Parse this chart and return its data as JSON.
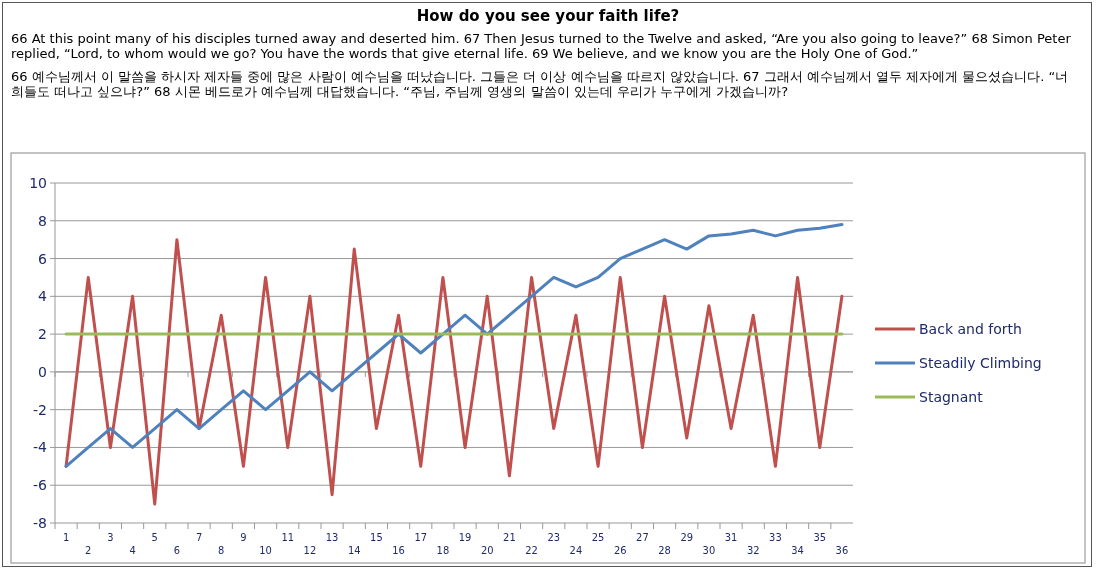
{
  "chart_data": {
    "type": "line",
    "title": "How do you see your faith life?",
    "subtitle": "66 At this point many of his disciples turned away and deserted him. 67 Then Jesus turned to the Twelve and asked, “Are you also going to leave?” 68 Simon Peter replied, “Lord, to whom would we go? You have the words that give eternal life. 69 We believe, and we know you are the Holy One of God.”",
    "annotations": [
      "66 예수님께서 이 말씀을 하시자 제자들 중에 많은 사람이 예수님을 떠났습니다. 그들은 더 이상 예수님을 따르지 않았습니다. 67 그래서 예수님께서 열두 제자에게 물으셨습니다. “너희들도 떠나고 싶으냐?” 68 시몬 베드로가 예수님께 대답했습니다. “주님, 주님께 영생의 말씀이 있는데 우리가 누구에게 가겠습니까?"
    ],
    "categories": [
      "1",
      "2",
      "3",
      "4",
      "5",
      "6",
      "7",
      "8",
      "9",
      "10",
      "11",
      "12",
      "13",
      "14",
      "15",
      "16",
      "17",
      "18",
      "19",
      "20",
      "21",
      "22",
      "23",
      "24",
      "25",
      "26",
      "27",
      "28",
      "29",
      "30",
      "31",
      "32",
      "33",
      "34",
      "35",
      "36"
    ],
    "series": [
      {
        "name": "Back and forth",
        "color": "#c0504d",
        "values": [
          -5,
          5,
          -4,
          4,
          -7,
          7,
          -3,
          3,
          -5,
          5,
          -4,
          4,
          -6.5,
          6.5,
          -3,
          3,
          -5,
          5,
          -4,
          4,
          -5.5,
          5,
          -3,
          3,
          -5,
          5,
          -4,
          4,
          -3.5,
          3.5,
          -3,
          3,
          -5,
          5,
          -4,
          4
        ]
      },
      {
        "name": "Steadily Climbing",
        "color": "#4f81bd",
        "values": [
          -5,
          -4,
          -3,
          -4,
          -3,
          -2,
          -3,
          -2,
          -1,
          -2,
          -1,
          0,
          -1,
          0,
          1,
          2,
          1,
          2,
          3,
          2,
          3,
          4,
          5,
          4.5,
          5,
          6,
          6.5,
          7,
          6.5,
          7.2,
          7.3,
          7.5,
          7.2,
          7.5,
          7.6,
          7.8
        ]
      },
      {
        "name": "Stagnant",
        "color": "#9bbb59",
        "values": [
          2,
          2,
          2,
          2,
          2,
          2,
          2,
          2,
          2,
          2,
          2,
          2,
          2,
          2,
          2,
          2,
          2,
          2,
          2,
          2,
          2,
          2,
          2,
          2,
          2,
          2,
          2,
          2,
          2,
          2,
          2,
          2,
          2,
          2,
          2,
          2
        ]
      }
    ],
    "ylim": [
      -8,
      10
    ],
    "yticks": [
      -8,
      -6,
      -4,
      -2,
      0,
      2,
      4,
      6,
      8,
      10
    ],
    "grid": "y",
    "legend": "right",
    "marker": "none",
    "line_style": "solid"
  }
}
